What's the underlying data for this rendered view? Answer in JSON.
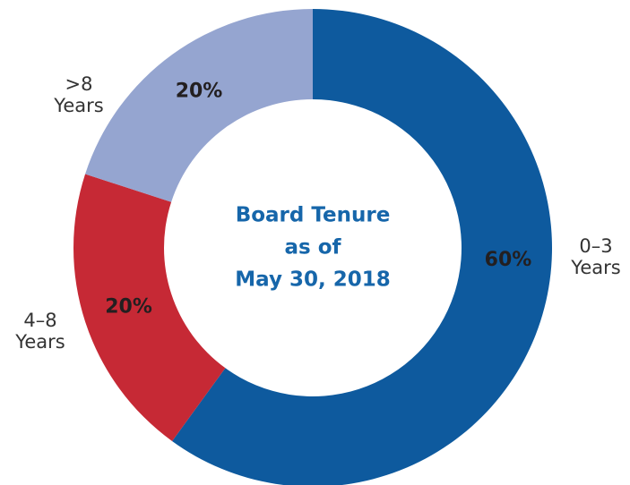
{
  "chart_data": {
    "type": "donut",
    "title": [
      "Board Tenure",
      "as of",
      "May 30, 2018"
    ],
    "categories": [
      "0–3 Years",
      "4–8 Years",
      ">8 Years"
    ],
    "values": [
      60,
      20,
      20
    ],
    "value_labels": [
      "60%",
      "20%",
      "20%"
    ],
    "colors": [
      "#0e5a9e",
      "#c62935",
      "#95a5d0"
    ]
  }
}
